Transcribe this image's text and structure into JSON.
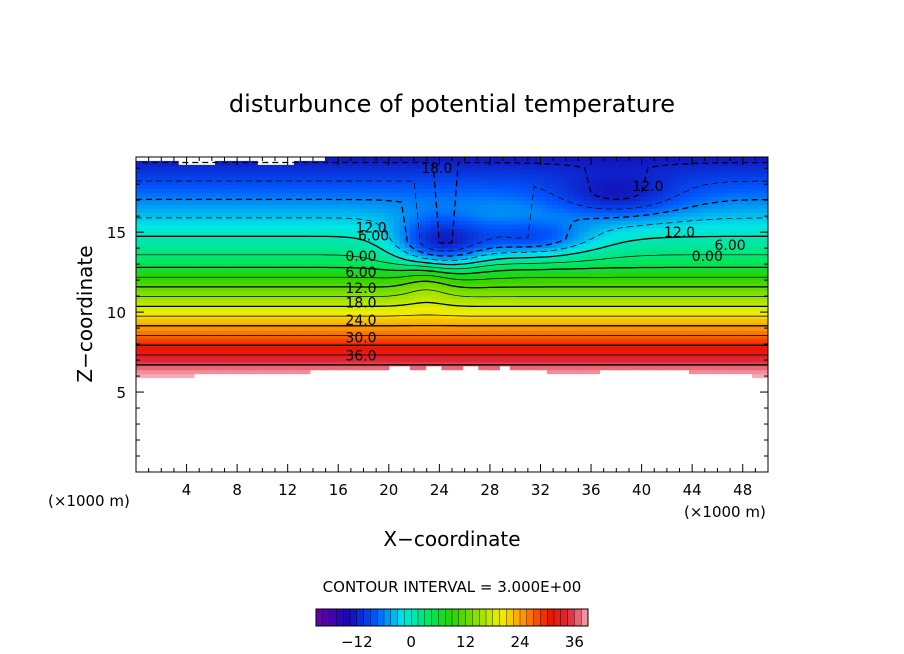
{
  "chart_data": {
    "type": "contour",
    "title": "disturbunce of potential temperature",
    "xlabel": "X−coordinate",
    "ylabel": "Z−coordinate",
    "x_unit_left": "(×1000 m)",
    "x_unit_right": "(×1000 m)",
    "xlim": [
      0,
      50
    ],
    "ylim": [
      0,
      19.7
    ],
    "x_ticks": [
      4,
      8,
      12,
      16,
      20,
      24,
      28,
      32,
      36,
      40,
      44,
      48
    ],
    "y_ticks": [
      5,
      10,
      15
    ],
    "contour_interval_text": "CONTOUR INTERVAL = 3.000E+00",
    "value_range": [
      -21,
      39
    ],
    "contour_labels": [
      {
        "text": "18.0",
        "x": 23.8,
        "y": 19.0
      },
      {
        "text": "12.0",
        "x": 40.5,
        "y": 17.9
      },
      {
        "text": "12.0",
        "x": 18.6,
        "y": 15.3
      },
      {
        "text": "6.00",
        "x": 18.8,
        "y": 14.8
      },
      {
        "text": "12.0",
        "x": 43.0,
        "y": 15.0
      },
      {
        "text": "6.00",
        "x": 47.0,
        "y": 14.2
      },
      {
        "text": "0.00",
        "x": 45.2,
        "y": 13.5
      },
      {
        "text": "0.00",
        "x": 17.8,
        "y": 13.5
      },
      {
        "text": "6.00",
        "x": 17.8,
        "y": 12.5
      },
      {
        "text": "12.0",
        "x": 17.8,
        "y": 11.5
      },
      {
        "text": "18.0",
        "x": 17.8,
        "y": 10.6
      },
      {
        "text": "24.0",
        "x": 17.8,
        "y": 9.5
      },
      {
        "text": "30.0",
        "x": 17.8,
        "y": 8.4
      },
      {
        "text": "36.0",
        "x": 17.8,
        "y": 7.3
      }
    ],
    "colorbar": {
      "ticks": [
        "−12",
        "0",
        "12",
        "24",
        "36"
      ],
      "tick_values": [
        -12,
        0,
        12,
        24,
        36
      ],
      "range": [
        -21,
        39
      ]
    }
  }
}
